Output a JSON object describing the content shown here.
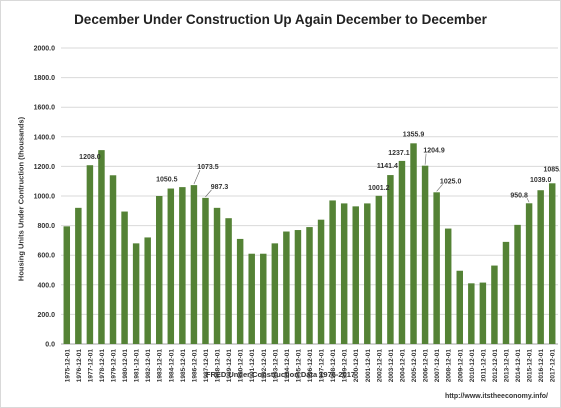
{
  "colors": {
    "bar": "#548235",
    "grid": "#d9d9d9",
    "axis": "#a6a6a6",
    "label": "#333333"
  },
  "chart_data": {
    "type": "bar",
    "title": "December Under Construction Up Again December to December",
    "xlabel": "FRED Under Construction Data 1976-2017",
    "ylabel": "Housing Units Under Contruction (thousands)",
    "source": "http://www.itstheeconomy.info/",
    "ylim": [
      0,
      2000
    ],
    "yticks": [
      "0.0",
      "200.0",
      "400.0",
      "600.0",
      "800.0",
      "1000.0",
      "1200.0",
      "1400.0",
      "1600.0",
      "1800.0",
      "2000.0"
    ],
    "grid": true,
    "legend": "none",
    "categories": [
      "1975-12-01",
      "1976-12-01",
      "1977-12-01",
      "1978-12-01",
      "1979-12-01",
      "1980-12-01",
      "1981-12-01",
      "1982-12-01",
      "1983-12-01",
      "1984-12-01",
      "1985-12-01",
      "1986-12-01",
      "1987-12-01",
      "1988-12-01",
      "1989-12-01",
      "1990-12-01",
      "1991-12-01",
      "1992-12-01",
      "1993-12-01",
      "1994-12-01",
      "1995-12-01",
      "1996-12-01",
      "1997-12-01",
      "1998-12-01",
      "1999-12-01",
      "2000-12-01",
      "2001-12-01",
      "2002-12-01",
      "2003-12-01",
      "2004-12-01",
      "2005-12-01",
      "2006-12-01",
      "2007-12-01",
      "2008-12-01",
      "2009-12-01",
      "2010-12-01",
      "2011-12-01",
      "2012-12-01",
      "2013-12-01",
      "2014-12-01",
      "2015-12-01",
      "2016-12-01",
      "2017-12-01"
    ],
    "values": [
      795,
      920,
      1208.0,
      1310,
      1140,
      895,
      680,
      720,
      1000,
      1050.5,
      1060,
      1073.5,
      987.3,
      920,
      850,
      710,
      610,
      610,
      680,
      760,
      770,
      790,
      840,
      970,
      950,
      930,
      950,
      1001.2,
      1141.4,
      1237.1,
      1355.9,
      1204.9,
      1025.0,
      780,
      495,
      410,
      415,
      530,
      690,
      805,
      950.8,
      1039.0,
      1085.8
    ],
    "data_labels": [
      {
        "index": 2,
        "text": "1208.0"
      },
      {
        "index": 9,
        "text": "1050.5"
      },
      {
        "index": 11,
        "text": "1073.5"
      },
      {
        "index": 12,
        "text": "987.3"
      },
      {
        "index": 27,
        "text": "1001.2"
      },
      {
        "index": 28,
        "text": "1141.4"
      },
      {
        "index": 29,
        "text": "1237.1"
      },
      {
        "index": 30,
        "text": "1355.9"
      },
      {
        "index": 31,
        "text": "1204.9"
      },
      {
        "index": 32,
        "text": "1025.0"
      },
      {
        "index": 40,
        "text": "950.8"
      },
      {
        "index": 41,
        "text": "1039.0"
      },
      {
        "index": 42,
        "text": "1085.8"
      }
    ]
  }
}
